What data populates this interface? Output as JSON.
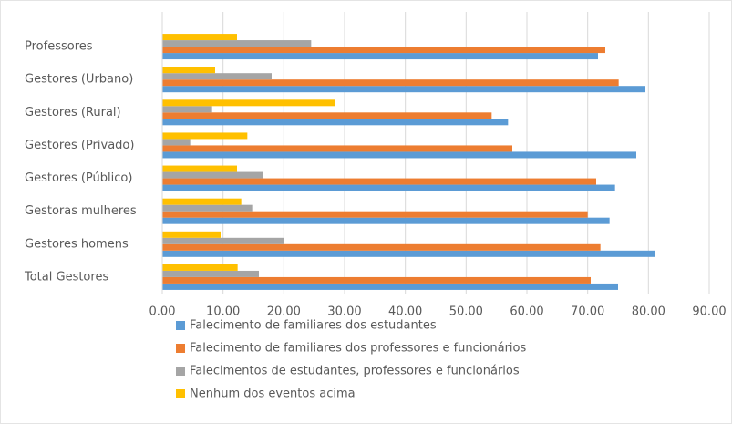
{
  "chart_data": {
    "type": "barh",
    "categories": [
      "Professores",
      "Gestores (Urbano)",
      "Gestores (Rural)",
      "Gestores (Privado)",
      "Gestores (Público)",
      "Gestoras mulheres",
      "Gestores homens",
      "Total Gestores"
    ],
    "series": [
      {
        "name": "Falecimento de familiares dos estudantes",
        "color": "#5b9bd5",
        "values": [
          71.7,
          79.5,
          56.9,
          78.0,
          74.5,
          73.6,
          81.1,
          75.0
        ]
      },
      {
        "name": "Falecimento de familiares dos professores e funcionários",
        "color": "#ed7d31",
        "values": [
          72.9,
          75.1,
          54.2,
          57.6,
          71.4,
          70.0,
          72.1,
          70.5
        ]
      },
      {
        "name": "Falecimentos de estudantes, professores e funcionários",
        "color": "#a5a5a5",
        "values": [
          24.5,
          18.0,
          8.2,
          4.6,
          16.6,
          14.8,
          20.1,
          15.9
        ]
      },
      {
        "name": "Nenhum dos eventos acima",
        "color": "#ffc000",
        "values": [
          12.3,
          8.7,
          28.5,
          14.0,
          12.3,
          13.0,
          9.6,
          12.4
        ]
      }
    ],
    "xlim": [
      0,
      90
    ],
    "xticks": [
      {
        "value": 0,
        "label": "0.00"
      },
      {
        "value": 10,
        "label": "10.00"
      },
      {
        "value": 20,
        "label": "20.00"
      },
      {
        "value": 30,
        "label": "30.00"
      },
      {
        "value": 40,
        "label": "40.00"
      },
      {
        "value": 50,
        "label": "50.00"
      },
      {
        "value": 60,
        "label": "60.00"
      },
      {
        "value": 70,
        "label": "70.00"
      },
      {
        "value": 80,
        "label": "80.00"
      },
      {
        "value": 90,
        "label": "90.00"
      }
    ],
    "grid": true
  }
}
